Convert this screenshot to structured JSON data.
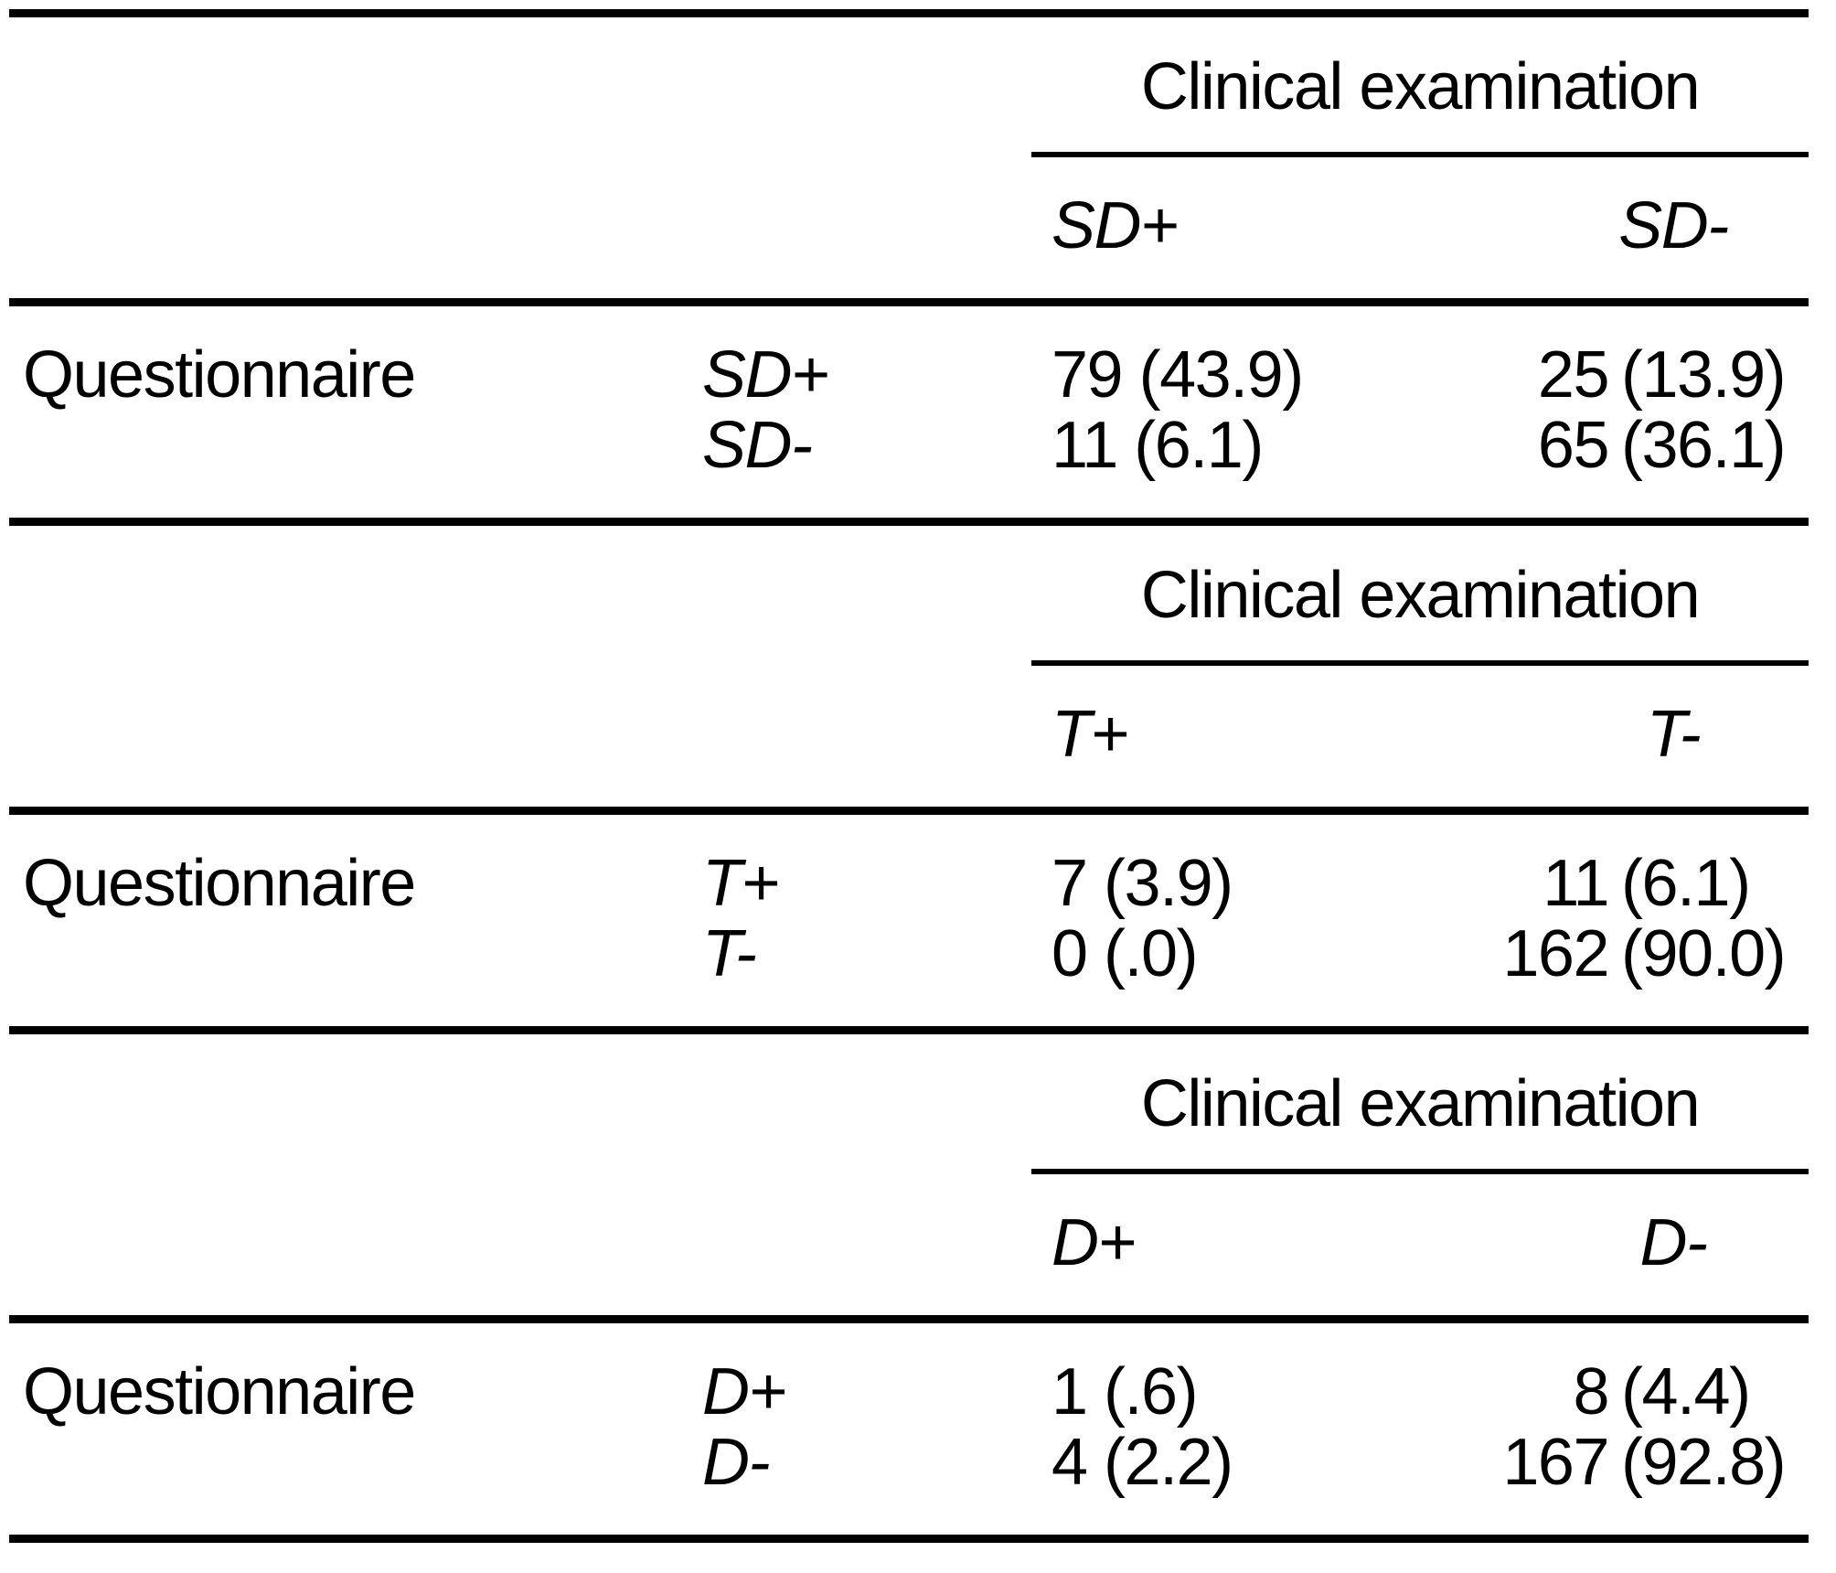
{
  "colors": {
    "text": "#000000",
    "background": "#ffffff",
    "rule": "#000000"
  },
  "tables": [
    {
      "spanner": "Clinical examination",
      "col_headers": [
        "SD+",
        "SD-"
      ],
      "row_group_label": "Questionnaire",
      "rows": [
        {
          "label": "SD+",
          "col1": "79 (43.9)",
          "col2_num": "25",
          "col2_pct": "(13.9)"
        },
        {
          "label": "SD-",
          "col1": "11 (6.1)",
          "col2_num": "65",
          "col2_pct": "(36.1)"
        }
      ]
    },
    {
      "spanner": "Clinical examination",
      "col_headers": [
        "T+",
        "T-"
      ],
      "row_group_label": "Questionnaire",
      "rows": [
        {
          "label": "T+",
          "col1": "7 (3.9)",
          "col2_num": "11",
          "col2_pct": "(6.1)"
        },
        {
          "label": "T-",
          "col1": "0 (.0)",
          "col2_num": "162",
          "col2_pct": "(90.0)"
        }
      ]
    },
    {
      "spanner": "Clinical examination",
      "col_headers": [
        "D+",
        "D-"
      ],
      "row_group_label": "Questionnaire",
      "rows": [
        {
          "label": "D+",
          "col1": "1 (.6)",
          "col2_num": "8",
          "col2_pct": "(4.4)"
        },
        {
          "label": "D-",
          "col1": "4 (2.2)",
          "col2_num": "167",
          "col2_pct": "(92.8)"
        }
      ]
    }
  ],
  "chart_data": [
    {
      "type": "table",
      "column_group_header": "Clinical examination",
      "row_group_header": "Questionnaire",
      "columns": [
        "SD+",
        "SD-"
      ],
      "row_labels": [
        "SD+",
        "SD-"
      ],
      "cells": [
        [
          "79 (43.9)",
          "25 (13.9)"
        ],
        [
          "11 (6.1)",
          "65 (36.1)"
        ]
      ],
      "counts": [
        [
          79,
          25
        ],
        [
          11,
          65
        ]
      ],
      "percents": [
        [
          43.9,
          13.9
        ],
        [
          6.1,
          36.1
        ]
      ]
    },
    {
      "type": "table",
      "column_group_header": "Clinical examination",
      "row_group_header": "Questionnaire",
      "columns": [
        "T+",
        "T-"
      ],
      "row_labels": [
        "T+",
        "T-"
      ],
      "cells": [
        [
          "7 (3.9)",
          "11 (6.1)"
        ],
        [
          "0 (.0)",
          "162 (90.0)"
        ]
      ],
      "counts": [
        [
          7,
          11
        ],
        [
          0,
          162
        ]
      ],
      "percents": [
        [
          3.9,
          6.1
        ],
        [
          0.0,
          90.0
        ]
      ]
    },
    {
      "type": "table",
      "column_group_header": "Clinical examination",
      "row_group_header": "Questionnaire",
      "columns": [
        "D+",
        "D-"
      ],
      "row_labels": [
        "D+",
        "D-"
      ],
      "cells": [
        [
          "1 (.6)",
          "8 (4.4)"
        ],
        [
          "4 (2.2)",
          "167 (92.8)"
        ]
      ],
      "counts": [
        [
          1,
          8
        ],
        [
          4,
          167
        ]
      ],
      "percents": [
        [
          0.6,
          4.4
        ],
        [
          2.2,
          92.8
        ]
      ]
    }
  ]
}
